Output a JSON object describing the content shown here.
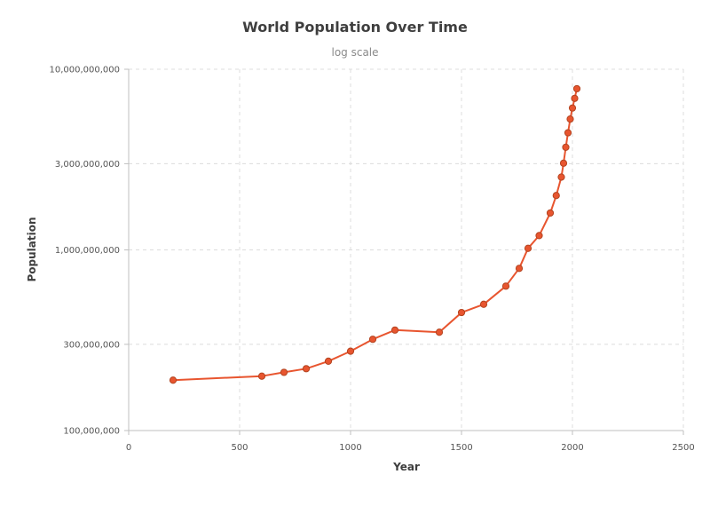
{
  "colors": {
    "series": "#e8552f",
    "point_stroke": "#b34420",
    "grid": "#dcdcdc",
    "axis": "#bfbfbf"
  },
  "chart_data": {
    "type": "line",
    "title": "World Population Over Time",
    "subtitle": "log scale",
    "xlabel": "Year",
    "ylabel": "Population",
    "xlim": [
      0,
      2500
    ],
    "ylim": [
      100000000,
      10000000000
    ],
    "yscale": "log",
    "grid": true,
    "x_ticks": [
      0,
      500,
      1000,
      1500,
      2000,
      2500
    ],
    "x_tick_labels": [
      "0",
      "500",
      "1000",
      "1500",
      "2000",
      "2500"
    ],
    "y_ticks": [
      100000000,
      300000000,
      1000000000,
      3000000000,
      10000000000
    ],
    "y_tick_labels": [
      "100,000,000",
      "300,000,000",
      "1,000,000,000",
      "3,000,000,000",
      "10,000,000,000"
    ],
    "series": [
      {
        "x": [
          200,
          600,
          700,
          800,
          900,
          1000,
          1100,
          1200,
          1400,
          1500,
          1600,
          1700,
          1760,
          1800,
          1850,
          1900,
          1927,
          1950,
          1960,
          1970,
          1980,
          1990,
          2000,
          2010,
          2020
        ],
        "y": [
          190000000,
          200000000,
          210000000,
          220000000,
          242000000,
          275000000,
          320000000,
          360000000,
          350000000,
          450000000,
          500000000,
          630000000,
          790000000,
          1020000000,
          1200000000,
          1600000000,
          2000000000,
          2530000000,
          3020000000,
          3700000000,
          4450000000,
          5300000000,
          6100000000,
          6900000000,
          7800000000
        ]
      }
    ]
  }
}
